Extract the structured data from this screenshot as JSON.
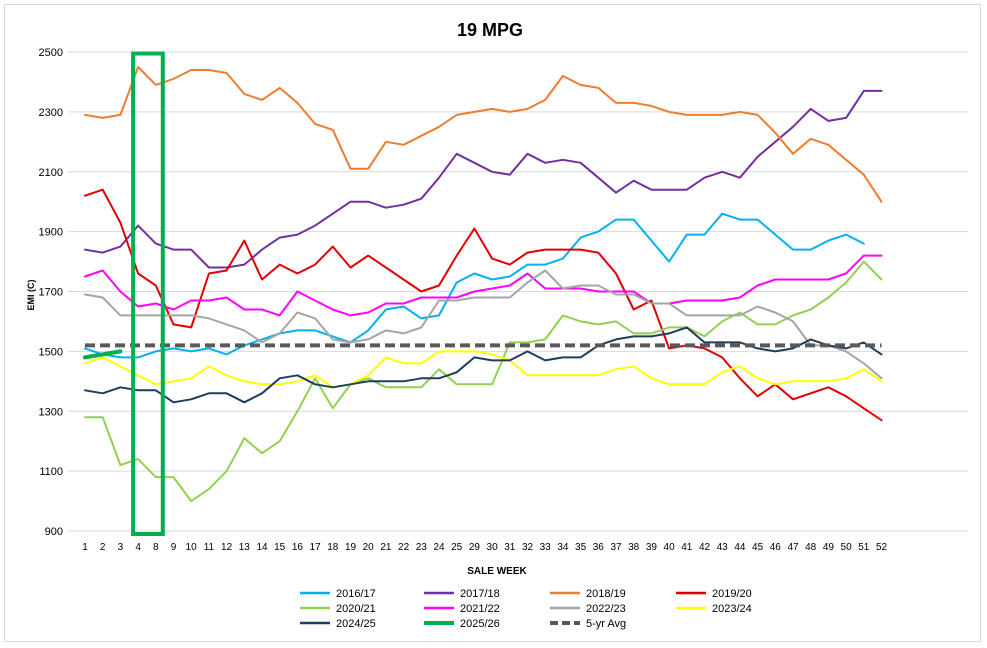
{
  "chart_data": {
    "type": "line",
    "title": "19 MPG",
    "xlabel": "SALE WEEK",
    "ylabel": "EMI (C)",
    "ylim": [
      900,
      2500
    ],
    "yticks": [
      900,
      1100,
      1300,
      1500,
      1700,
      1900,
      2100,
      2300,
      2500
    ],
    "grid": "horizontal",
    "legend_position": "bottom",
    "x": [
      "1",
      "2",
      "3",
      "4",
      "8",
      "9",
      "10",
      "11",
      "12",
      "13",
      "14",
      "15",
      "16",
      "17",
      "18",
      "19",
      "20",
      "21",
      "22",
      "23",
      "24",
      "25",
      "29",
      "30",
      "31",
      "32",
      "33",
      "34",
      "35",
      "36",
      "37",
      "38",
      "39",
      "40",
      "41",
      "42",
      "43",
      "44",
      "45",
      "46",
      "47",
      "48",
      "49",
      "50",
      "51",
      "52"
    ],
    "highlight": {
      "from_category": "4",
      "to_category": "8",
      "ymin": 890,
      "ymax": 2495,
      "color": "#00b050"
    },
    "series": [
      {
        "name": "2016/17",
        "color": "#00b0f0",
        "dash": false,
        "width": 2,
        "values": [
          1510,
          1490,
          1480,
          1480,
          1500,
          1510,
          1500,
          1510,
          1490,
          1520,
          1540,
          1560,
          1570,
          1570,
          1550,
          1530,
          1570,
          1640,
          1650,
          1610,
          1620,
          1730,
          1760,
          1740,
          1750,
          1790,
          1790,
          1810,
          1880,
          1900,
          1940,
          1940,
          1870,
          1800,
          1890,
          1890,
          1960,
          1940,
          1940,
          1890,
          1840,
          1840,
          1870,
          1890,
          1860,
          null
        ]
      },
      {
        "name": "2017/18",
        "color": "#7030a0",
        "dash": false,
        "width": 2,
        "values": [
          1840,
          1830,
          1850,
          1920,
          1860,
          1840,
          1840,
          1780,
          1780,
          1790,
          1840,
          1880,
          1890,
          1920,
          1960,
          2000,
          2000,
          1980,
          1990,
          2010,
          2080,
          2160,
          2130,
          2100,
          2090,
          2160,
          2130,
          2140,
          2130,
          2080,
          2030,
          2070,
          2040,
          2040,
          2040,
          2080,
          2100,
          2080,
          2150,
          2200,
          2250,
          2310,
          2270,
          2280,
          2370,
          2370
        ]
      },
      {
        "name": "2018/19",
        "color": "#ed7d31",
        "dash": false,
        "width": 2,
        "values": [
          2290,
          2280,
          2290,
          2450,
          2390,
          2410,
          2440,
          2440,
          2430,
          2360,
          2340,
          2380,
          2330,
          2260,
          2240,
          2110,
          2110,
          2200,
          2190,
          2220,
          2250,
          2290,
          2300,
          2310,
          2300,
          2310,
          2340,
          2420,
          2390,
          2380,
          2330,
          2330,
          2320,
          2300,
          2290,
          2290,
          2290,
          2300,
          2290,
          2230,
          2160,
          2210,
          2190,
          2140,
          2090,
          2000
        ]
      },
      {
        "name": "2019/20",
        "color": "#e00000",
        "dash": false,
        "width": 2,
        "values": [
          2020,
          2040,
          1930,
          1760,
          1720,
          1590,
          1580,
          1760,
          1770,
          1870,
          1740,
          1790,
          1760,
          1790,
          1850,
          1780,
          1820,
          1780,
          1740,
          1700,
          1720,
          1820,
          1910,
          1810,
          1790,
          1830,
          1840,
          1840,
          1840,
          1830,
          1760,
          1640,
          1670,
          1510,
          1520,
          1510,
          1480,
          1410,
          1350,
          1390,
          1340,
          1360,
          1380,
          1350,
          1310,
          1270
        ]
      },
      {
        "name": "2020/21",
        "color": "#92d050",
        "dash": false,
        "width": 2,
        "values": [
          1280,
          1280,
          1120,
          1140,
          1080,
          1080,
          1000,
          1040,
          1100,
          1210,
          1160,
          1200,
          1300,
          1410,
          1310,
          1390,
          1410,
          1380,
          1380,
          1380,
          1440,
          1390,
          1390,
          1390,
          1530,
          1530,
          1540,
          1620,
          1600,
          1590,
          1600,
          1560,
          1560,
          1580,
          1580,
          1550,
          1600,
          1630,
          1590,
          1590,
          1620,
          1640,
          1680,
          1730,
          1800,
          1740
        ]
      },
      {
        "name": "2021/22",
        "color": "#ff00ff",
        "dash": false,
        "width": 2,
        "values": [
          1750,
          1770,
          1700,
          1650,
          1660,
          1640,
          1670,
          1670,
          1680,
          1640,
          1640,
          1620,
          1700,
          1670,
          1640,
          1620,
          1630,
          1660,
          1660,
          1680,
          1680,
          1680,
          1700,
          1710,
          1720,
          1760,
          1710,
          1710,
          1710,
          1700,
          1700,
          1700,
          1660,
          1660,
          1670,
          1670,
          1670,
          1680,
          1720,
          1740,
          1740,
          1740,
          1740,
          1760,
          1820,
          1820
        ]
      },
      {
        "name": "2022/23",
        "color": "#a5a5a5",
        "dash": false,
        "width": 2,
        "values": [
          1690,
          1680,
          1620,
          1620,
          1620,
          1620,
          1620,
          1610,
          1590,
          1570,
          1530,
          1560,
          1630,
          1610,
          1540,
          1530,
          1540,
          1570,
          1560,
          1580,
          1670,
          1670,
          1680,
          1680,
          1680,
          1730,
          1770,
          1710,
          1720,
          1720,
          1690,
          1690,
          1660,
          1660,
          1620,
          1620,
          1620,
          1620,
          1650,
          1630,
          1600,
          1520,
          1520,
          1500,
          1460,
          1410
        ]
      },
      {
        "name": "2023/24",
        "color": "#ffff00",
        "dash": false,
        "width": 2,
        "values": [
          1460,
          1480,
          1450,
          1420,
          1390,
          1400,
          1410,
          1450,
          1420,
          1400,
          1390,
          1390,
          1400,
          1420,
          1380,
          1390,
          1420,
          1480,
          1460,
          1460,
          1500,
          1500,
          1500,
          1490,
          1470,
          1420,
          1420,
          1420,
          1420,
          1420,
          1440,
          1450,
          1410,
          1390,
          1390,
          1390,
          1430,
          1450,
          1410,
          1390,
          1400,
          1400,
          1400,
          1410,
          1440,
          1400
        ]
      },
      {
        "name": "2024/25",
        "color": "#1f3d5c",
        "dash": false,
        "width": 2,
        "values": [
          1370,
          1360,
          1380,
          1370,
          1370,
          1330,
          1340,
          1360,
          1360,
          1330,
          1360,
          1410,
          1420,
          1390,
          1380,
          1390,
          1400,
          1400,
          1400,
          1410,
          1410,
          1430,
          1480,
          1470,
          1470,
          1500,
          1470,
          1480,
          1480,
          1520,
          1540,
          1550,
          1550,
          1560,
          1580,
          1530,
          1530,
          1530,
          1510,
          1500,
          1510,
          1540,
          1520,
          1510,
          1530,
          1490
        ]
      },
      {
        "name": "2025/26",
        "color": "#00b050",
        "dash": false,
        "width": 4,
        "values": [
          1480,
          1490,
          1500,
          null,
          null,
          null,
          null,
          null,
          null,
          null,
          null,
          null,
          null,
          null,
          null,
          null,
          null,
          null,
          null,
          null,
          null,
          null,
          null,
          null,
          null,
          null,
          null,
          null,
          null,
          null,
          null,
          null,
          null,
          null,
          null,
          null,
          null,
          null,
          null,
          null,
          null,
          null,
          null,
          null,
          null,
          null
        ]
      },
      {
        "name": "5-yr Avg",
        "color": "#595959",
        "dash": true,
        "width": 4,
        "values": [
          1520,
          1520,
          1520,
          1520,
          1520,
          1520,
          1520,
          1520,
          1520,
          1520,
          1520,
          1520,
          1520,
          1520,
          1520,
          1520,
          1520,
          1520,
          1520,
          1520,
          1520,
          1520,
          1520,
          1520,
          1520,
          1520,
          1520,
          1520,
          1520,
          1520,
          1520,
          1520,
          1520,
          1520,
          1520,
          1520,
          1520,
          1520,
          1520,
          1520,
          1520,
          1520,
          1520,
          1520,
          1520,
          1520
        ]
      }
    ]
  }
}
